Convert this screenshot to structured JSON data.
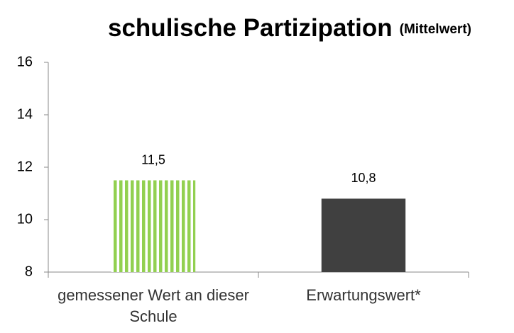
{
  "chart_data": {
    "type": "bar",
    "title": "schulische Partizipation",
    "subtitle": "(Mittelwert)",
    "categories": [
      "gemessener Wert an dieser Schule",
      "Erwartungswert*"
    ],
    "values": [
      11.5,
      10.8
    ],
    "value_labels": [
      "11,5",
      "10,8"
    ],
    "colors": [
      "#92d050",
      "#404040"
    ],
    "hatch": [
      "vertical",
      null
    ],
    "ylim": [
      8,
      16
    ],
    "yticks": [
      8,
      10,
      12,
      14,
      16
    ],
    "grid": false
  }
}
